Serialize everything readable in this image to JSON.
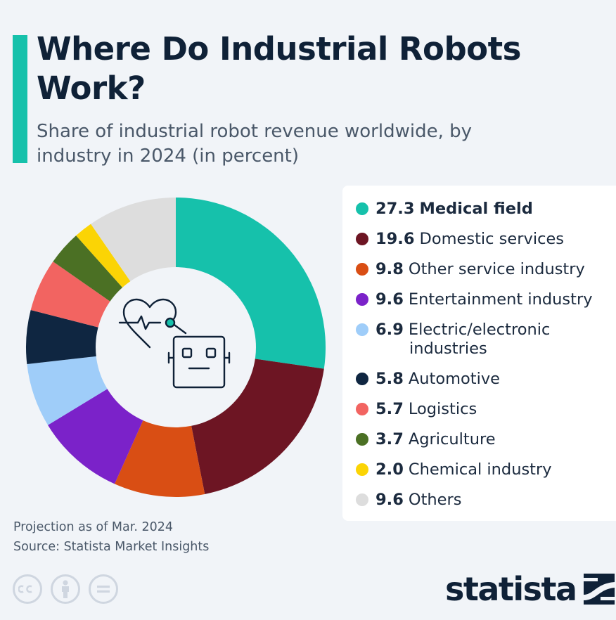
{
  "header": {
    "title": "Where Do Industrial Robots Work?",
    "subtitle": "Share of industrial robot revenue worldwide, by industry in 2024 (in percent)"
  },
  "chart_data": {
    "type": "pie",
    "style": "donut",
    "title": "Where Do Industrial Robots Work?",
    "subtitle": "Share of industrial robot revenue worldwide, by industry in 2024 (in percent)",
    "unit": "percent",
    "categories": [
      "Medical field",
      "Domestic services",
      "Other service industry",
      "Entertainment industry",
      "Electric/electronic industries",
      "Automotive",
      "Logistics",
      "Agriculture",
      "Chemical industry",
      "Others"
    ],
    "values": [
      27.3,
      19.6,
      9.8,
      9.6,
      6.9,
      5.8,
      5.7,
      3.7,
      2.0,
      9.6
    ],
    "colors": [
      "#16c1ab",
      "#6d1523",
      "#d94e14",
      "#7b22c9",
      "#9fcdf9",
      "#0f2641",
      "#f26461",
      "#4b7024",
      "#fbd405",
      "#dddddd"
    ],
    "legend_placement": "right",
    "center_icon": "robot-heart-icon"
  },
  "legend": {
    "items": [
      {
        "value": "27.3",
        "label": "Medical field"
      },
      {
        "value": "19.6",
        "label": "Domestic services"
      },
      {
        "value": "9.8",
        "label": "Other service industry"
      },
      {
        "value": "9.6",
        "label": "Entertainment industry"
      },
      {
        "value": "6.9",
        "label": "Electric/electronic",
        "label_line2": "industries"
      },
      {
        "value": "5.8",
        "label": "Automotive"
      },
      {
        "value": "5.7",
        "label": "Logistics"
      },
      {
        "value": "3.7",
        "label": "Agriculture"
      },
      {
        "value": "2.0",
        "label": "Chemical industry"
      },
      {
        "value": "9.6",
        "label": "Others"
      }
    ]
  },
  "footer": {
    "note": "Projection as of Mar. 2024",
    "source": "Source: Statista Market Insights",
    "brand": "statista",
    "license_icons": [
      "cc-icon",
      "attribution-icon",
      "no-derivatives-icon"
    ]
  }
}
